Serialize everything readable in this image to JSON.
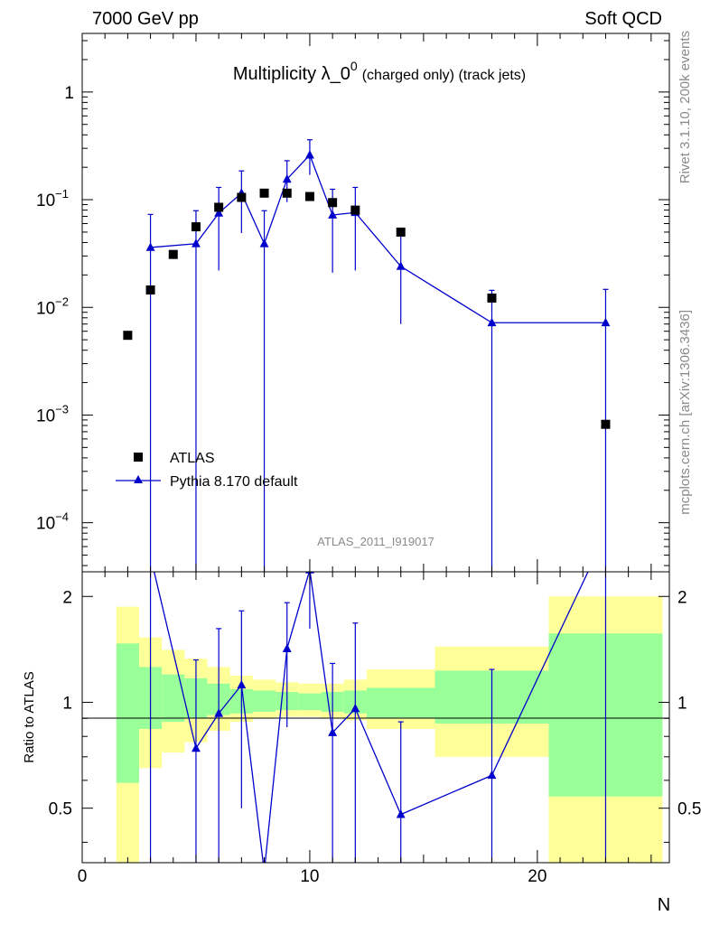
{
  "header": {
    "left": "7000 GeV pp",
    "right": "Soft QCD"
  },
  "plot_title": {
    "main": "Multiplicity λ_0",
    "sup": "0",
    "sub": "(charged only) (track jets)"
  },
  "side_labels": {
    "rivet": "Rivet 3.1.10,  200k events",
    "mcplots": "mcplots.cern.ch [arXiv:1306.3436]"
  },
  "watermark": "ATLAS_2011_I919017",
  "colors": {
    "mc": "#0000cc",
    "data": "#000000",
    "band_inner": "#99ff99",
    "band_outer": "#ffff99"
  },
  "chart_data": [
    {
      "type": "scatter",
      "panel": "main",
      "yscale": "log",
      "xlim": [
        0,
        25.8
      ],
      "ylim": [
        3.5e-05,
        3.5
      ],
      "y_ticks": [
        {
          "value": 0.0001,
          "base": "10",
          "exp": "−4"
        },
        {
          "value": 0.001,
          "base": "10",
          "exp": "−3"
        },
        {
          "value": 0.01,
          "base": "10",
          "exp": "−2"
        },
        {
          "value": 0.1,
          "base": "10",
          "exp": "−1"
        },
        {
          "value": 1,
          "base": "1",
          "exp": ""
        }
      ],
      "legend": {
        "position": "bottom-left",
        "entries": [
          "ATLAS",
          "Pythia 8.170 default"
        ]
      },
      "series": [
        {
          "name": "ATLAS",
          "marker": "square",
          "x": [
            2,
            3,
            4,
            5,
            6,
            7,
            8,
            9,
            10,
            11,
            12,
            14,
            18,
            23
          ],
          "y": [
            0.0055,
            0.0145,
            0.031,
            0.056,
            0.085,
            0.105,
            0.115,
            0.115,
            0.107,
            0.094,
            0.08,
            0.05,
            0.0122,
            0.00082
          ]
        },
        {
          "name": "Pythia 8.170 default",
          "marker": "triangle",
          "x": [
            3,
            5,
            6,
            7,
            8,
            9,
            10,
            11,
            12,
            14,
            18,
            23
          ],
          "y": [
            0.036,
            0.039,
            0.075,
            0.115,
            0.039,
            0.155,
            0.26,
            0.072,
            0.076,
            0.024,
            0.0072,
            0.0072
          ],
          "yerr_low": [
            0.036,
            0.039,
            0.053,
            0.066,
            0.039,
            0.06,
            0.09,
            0.051,
            0.054,
            0.017,
            0.0072,
            0.0072
          ],
          "yerr_high": [
            0.037,
            0.04,
            0.055,
            0.07,
            0.04,
            0.075,
            0.1,
            0.053,
            0.054,
            0.025,
            0.0072,
            0.0075
          ]
        }
      ]
    },
    {
      "type": "line",
      "panel": "ratio",
      "ylabel": "Ratio to ATLAS",
      "xlabel": "N",
      "xlim": [
        0,
        25.8
      ],
      "ylim": [
        0.35,
        2.35
      ],
      "x_ticks": [
        0,
        10,
        20
      ],
      "y_ticks": [
        0.5,
        1,
        2
      ],
      "bands": [
        {
          "x0": 1.5,
          "x1": 2.5,
          "inner": [
            0.59,
            1.47
          ],
          "outer": [
            0.25,
            1.87
          ]
        },
        {
          "x0": 2.5,
          "x1": 3.5,
          "inner": [
            0.84,
            1.26
          ],
          "outer": [
            0.65,
            1.53
          ]
        },
        {
          "x0": 3.5,
          "x1": 4.5,
          "inner": [
            0.88,
            1.2
          ],
          "outer": [
            0.72,
            1.41
          ]
        },
        {
          "x0": 4.5,
          "x1": 5.5,
          "inner": [
            0.9,
            1.17
          ],
          "outer": [
            0.77,
            1.33
          ]
        },
        {
          "x0": 5.5,
          "x1": 6.5,
          "inner": [
            0.92,
            1.13
          ],
          "outer": [
            0.83,
            1.26
          ]
        },
        {
          "x0": 6.5,
          "x1": 7.5,
          "inner": [
            0.93,
            1.09
          ],
          "outer": [
            0.88,
            1.19
          ]
        },
        {
          "x0": 7.5,
          "x1": 8.5,
          "inner": [
            0.94,
            1.08
          ],
          "outer": [
            0.9,
            1.16
          ]
        },
        {
          "x0": 8.5,
          "x1": 9.5,
          "inner": [
            0.95,
            1.07
          ],
          "outer": [
            0.91,
            1.14
          ]
        },
        {
          "x0": 9.5,
          "x1": 10.5,
          "inner": [
            0.95,
            1.06
          ],
          "outer": [
            0.91,
            1.13
          ]
        },
        {
          "x0": 10.5,
          "x1": 11.5,
          "inner": [
            0.94,
            1.07
          ],
          "outer": [
            0.9,
            1.13
          ]
        },
        {
          "x0": 11.5,
          "x1": 12.5,
          "inner": [
            0.93,
            1.08
          ],
          "outer": [
            0.89,
            1.16
          ]
        },
        {
          "x0": 12.5,
          "x1": 15.5,
          "inner": [
            0.9,
            1.1
          ],
          "outer": [
            0.84,
            1.24
          ]
        },
        {
          "x0": 15.5,
          "x1": 20.5,
          "inner": [
            0.87,
            1.23
          ],
          "outer": [
            0.7,
            1.44
          ]
        },
        {
          "x0": 20.5,
          "x1": 25.5,
          "inner": [
            0.54,
            1.57
          ],
          "outer": [
            0.25,
            2.0
          ]
        }
      ],
      "series": [
        {
          "name": "Pythia 8.170 default",
          "x": [
            3,
            5,
            6,
            7,
            8,
            9,
            10,
            11,
            12,
            14,
            18,
            23
          ],
          "y": [
            2.6,
            0.74,
            0.93,
            1.12,
            0.33,
            1.42,
            2.38,
            0.82,
            0.96,
            0.48,
            0.62,
            3.0
          ],
          "ylo": [
            0.35,
            0.2,
            0.3,
            0.5,
            0.2,
            0.85,
            1.62,
            0.35,
            0.3,
            0.2,
            0.2,
            0.2
          ],
          "yhi": [
            3.0,
            1.32,
            1.62,
            1.82,
            0.35,
            1.92,
            3.0,
            1.29,
            1.68,
            0.88,
            1.24,
            3.0
          ]
        }
      ]
    }
  ]
}
